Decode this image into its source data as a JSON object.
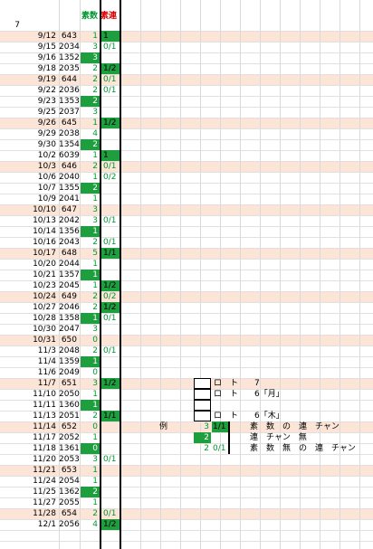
{
  "header": {
    "primes_label": "素数",
    "ren_label": "素連",
    "first_value": "7"
  },
  "rows": [
    {
      "date": "9/12",
      "number": 643,
      "primes": 1,
      "ren": "1",
      "ren_hl": true,
      "shaded": true
    },
    {
      "date": "9/15",
      "number": 2034,
      "primes": 3,
      "ren": "0/1"
    },
    {
      "date": "9/16",
      "number": 1352,
      "primes": 3,
      "primes_hl": true
    },
    {
      "date": "9/18",
      "number": 2035,
      "primes": 2,
      "ren": "1/2",
      "ren_hl": true
    },
    {
      "date": "9/19",
      "number": 644,
      "primes": 2,
      "ren": "0/1",
      "shaded": true
    },
    {
      "date": "9/22",
      "number": 2036,
      "primes": 2,
      "ren": "0/1"
    },
    {
      "date": "9/23",
      "number": 1353,
      "primes": 2,
      "primes_hl": true
    },
    {
      "date": "9/25",
      "number": 2037,
      "primes": 3
    },
    {
      "date": "9/26",
      "number": 645,
      "primes": 1,
      "ren": "1/2",
      "ren_hl": true,
      "shaded": true
    },
    {
      "date": "9/29",
      "number": 2038,
      "primes": 4
    },
    {
      "date": "9/30",
      "number": 1354,
      "primes": 2,
      "primes_hl": true
    },
    {
      "date": "10/2",
      "number": 6039,
      "primes": 1,
      "ren": "1",
      "ren_hl": true
    },
    {
      "date": "10/3",
      "number": 646,
      "primes": 2,
      "ren": "0/1",
      "shaded": true
    },
    {
      "date": "10/6",
      "number": 2040,
      "primes": 1,
      "ren": "0/2"
    },
    {
      "date": "10/7",
      "number": 1355,
      "primes": 2,
      "primes_hl": true
    },
    {
      "date": "10/9",
      "number": 2041,
      "primes": 1
    },
    {
      "date": "10/10",
      "number": 647,
      "primes": 3,
      "shaded": true
    },
    {
      "date": "10/13",
      "number": 2042,
      "primes": 3,
      "ren": "0/1"
    },
    {
      "date": "10/14",
      "number": 1356,
      "primes": 1,
      "primes_hl": true
    },
    {
      "date": "10/16",
      "number": 2043,
      "primes": 2,
      "ren": "0/1"
    },
    {
      "date": "10/17",
      "number": 648,
      "primes": 5,
      "ren": "1/1",
      "ren_hl": true,
      "shaded": true
    },
    {
      "date": "10/20",
      "number": 2044,
      "primes": 1
    },
    {
      "date": "10/21",
      "number": 1357,
      "primes": 1,
      "primes_hl": true
    },
    {
      "date": "10/23",
      "number": 2045,
      "primes": 1,
      "ren": "1/2",
      "ren_hl": true
    },
    {
      "date": "10/24",
      "number": 649,
      "primes": 2,
      "ren": "0/2",
      "shaded": true
    },
    {
      "date": "10/27",
      "number": 2046,
      "primes": 2,
      "ren": "1/2",
      "ren_hl": true
    },
    {
      "date": "10/28",
      "number": 1358,
      "primes": 1,
      "primes_hl": true,
      "ren": "0/1"
    },
    {
      "date": "10/30",
      "number": 2047,
      "primes": 3
    },
    {
      "date": "10/31",
      "number": 650,
      "primes": 0,
      "shaded": true
    },
    {
      "date": "11/3",
      "number": 2048,
      "primes": 2,
      "ren": "0/1"
    },
    {
      "date": "11/4",
      "number": 1359,
      "primes": 1,
      "primes_hl": true
    },
    {
      "date": "11/6",
      "number": 2049,
      "primes": 0
    },
    {
      "date": "11/7",
      "number": 651,
      "primes": 3,
      "ren": "1/2",
      "ren_hl": true,
      "shaded": true
    },
    {
      "date": "11/10",
      "number": 2050,
      "primes": 1
    },
    {
      "date": "11/11",
      "number": 1360,
      "primes": 1,
      "primes_hl": true
    },
    {
      "date": "11/13",
      "number": 2051,
      "primes": 2,
      "ren": "1/1",
      "ren_hl": true
    },
    {
      "date": "11/14",
      "number": 652,
      "primes": 0,
      "shaded": true
    },
    {
      "date": "11/17",
      "number": 2052,
      "primes": 1
    },
    {
      "date": "11/18",
      "number": 1361,
      "primes": 0,
      "primes_hl": true
    },
    {
      "date": "11/20",
      "number": 2053,
      "primes": 3,
      "ren": "0/1"
    },
    {
      "date": "11/21",
      "number": 653,
      "primes": 1,
      "shaded": true
    },
    {
      "date": "11/24",
      "number": 2054,
      "primes": 1
    },
    {
      "date": "11/25",
      "number": 1362,
      "primes": 2,
      "primes_hl": true
    },
    {
      "date": "11/27",
      "number": 2055,
      "primes": 1
    },
    {
      "date": "11/28",
      "number": 654,
      "primes": 2,
      "ren": "0/1",
      "shaded": true
    },
    {
      "date": "12/1",
      "number": 2056,
      "primes": 4,
      "ren": "1/2",
      "ren_hl": true
    }
  ],
  "legend": {
    "title": "例",
    "keys": [
      {
        "text": "ロ　ト　　7"
      },
      {
        "text": "ロ　ト　　6「月」"
      },
      {
        "text": "ロ　ト　　6「木」",
        "skip": 1
      }
    ],
    "samples": [
      {
        "count": 3,
        "ren": "1/1",
        "ren_hl": true,
        "text": "素　数　の　連　チャン"
      },
      {
        "count": 2,
        "count_hl": true,
        "text": "連　チャン　無"
      },
      {
        "count": 2,
        "ren": "0/1",
        "text": "素　数　無　の　連　チャン"
      }
    ]
  }
}
